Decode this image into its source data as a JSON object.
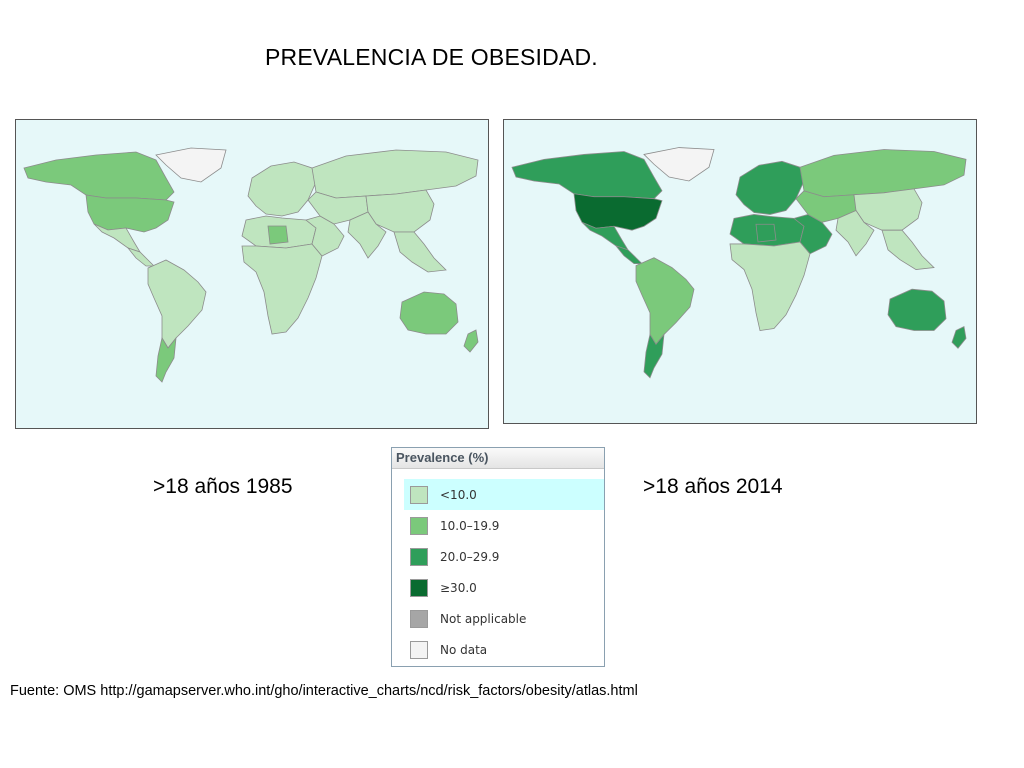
{
  "title": "PREVALENCIA DE OBESIDAD.",
  "maps": [
    {
      "caption": ">18 años 1985",
      "region_levels": {
        "north_america": "10.0–19.9",
        "usa": "10.0–19.9",
        "greenland": "No data",
        "mexico": "<10.0",
        "central_america": "<10.0",
        "south_america": "<10.0",
        "argentina": "10.0–19.9",
        "europe": "<10.0",
        "north_africa": "<10.0",
        "libya": "10.0–19.9",
        "africa": "<10.0",
        "middle_east": "<10.0",
        "russia": "<10.0",
        "central_asia": "<10.0",
        "china": "<10.0",
        "india": "<10.0",
        "se_asia": "<10.0",
        "australia": "10.0–19.9",
        "new_zealand": "10.0–19.9"
      }
    },
    {
      "caption": ">18 años 2014",
      "region_levels": {
        "north_america": "20.0–29.9",
        "usa": "≥30.0",
        "greenland": "No data",
        "mexico": "20.0–29.9",
        "central_america": "20.0–29.9",
        "south_america": "10.0–19.9",
        "argentina": "20.0–29.9",
        "europe": "20.0–29.9",
        "north_africa": "20.0–29.9",
        "libya": "20.0–29.9",
        "africa": "<10.0",
        "middle_east": "20.0–29.9",
        "russia": "10.0–19.9",
        "central_asia": "10.0–19.9",
        "china": "<10.0",
        "india": "<10.0",
        "se_asia": "<10.0",
        "australia": "20.0–29.9",
        "new_zealand": "20.0–29.9"
      }
    }
  ],
  "legend": {
    "title": "Prevalence (%)",
    "items": [
      {
        "label": "<10.0",
        "color": "#bfe5bf",
        "selected": true
      },
      {
        "label": "10.0–19.9",
        "color": "#7bc97b"
      },
      {
        "label": "20.0–29.9",
        "color": "#2f9e5a"
      },
      {
        "label": "≥30.0",
        "color": "#0a6b30"
      },
      {
        "label": "Not applicable",
        "color": "#a6a6a6"
      },
      {
        "label": "No data",
        "color": "#f4f4f4"
      }
    ]
  },
  "source": "Fuente: OMS http://gamapserver.who.int/gho/interactive_charts/ncd/risk_factors/obesity/atlas.html"
}
